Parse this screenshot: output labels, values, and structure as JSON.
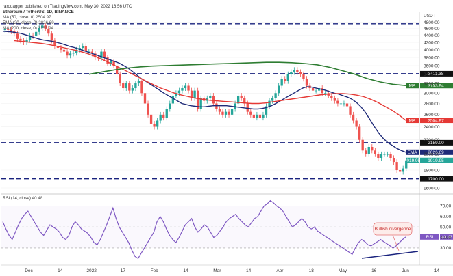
{
  "header": {
    "publisher": "rarodagger published on TradingView.com, May 30, 2022 16:56 UTC",
    "title": "Ethereum / TetherUS, 1D, BINANCE",
    "ma50": "MA (50, close, 0)",
    "ma50_val": "2504.97",
    "ema20": "EMA (20, close, 0)",
    "ema20_val": "2026.69",
    "ma200": "MA (200, close, 0)",
    "ma200_val": "3153.94"
  },
  "rsi_header": {
    "label": "RSI (14, close)",
    "value": "40.48"
  },
  "annotation": "Bullish divergence",
  "colors": {
    "up": "#26a69a",
    "down": "#ef5350",
    "ma50": "#e53935",
    "ema20": "#1e2a78",
    "ma200": "#2e7d32",
    "rsi": "#7e57c2",
    "level": "#1a237e"
  },
  "chart_data": [
    {
      "type": "candlestick",
      "unit": "USDT",
      "x_labels": [
        "Dec",
        "14",
        "2022",
        "17",
        "Feb",
        "14",
        "Mar",
        "14",
        "Apr",
        "18",
        "May",
        "16",
        "Jun",
        "14"
      ],
      "y_ticks": [
        1600,
        1800,
        2000,
        2200,
        2400,
        2600,
        2800,
        3000,
        3200,
        3400,
        3600,
        3800,
        4000,
        4200,
        4400,
        4600,
        4800
      ],
      "ylim": [
        1550,
        4900
      ],
      "scale": "log",
      "horizontal_levels": [
        {
          "label": "3411.38",
          "value": 3411.38
        },
        {
          "label": "2159.00",
          "value": 2159.0
        },
        {
          "label": "1700.00",
          "value": 1700.0
        }
      ],
      "price_labels": [
        {
          "label": "MA",
          "value": "3153.94"
        },
        {
          "label": "MA",
          "value": "2504.97"
        },
        {
          "label": "EMA",
          "value": "2026.69"
        },
        {
          "label": "1919.95",
          "value": "1919.95"
        }
      ],
      "close_series": [
        4600,
        4560,
        4520,
        4450,
        4300,
        4250,
        4200,
        4270,
        4400,
        4380,
        4500,
        4620,
        4700,
        4600,
        4450,
        4250,
        4100,
        4050,
        4000,
        3950,
        3850,
        3900,
        3920,
        4000,
        4050,
        4100,
        3950,
        3950,
        3900,
        3800,
        3780,
        3950,
        3800,
        3650,
        3700,
        3600,
        3400,
        3200,
        3100,
        3200,
        3050,
        3100,
        3200,
        3250,
        3000,
        2800,
        2600,
        2450,
        2400,
        2500,
        2600,
        2550,
        2700,
        2800,
        2950,
        3000,
        3050,
        3100,
        3150,
        3050,
        2900,
        3050,
        2700,
        2900,
        2850,
        2900,
        2950,
        2800,
        2700,
        2650,
        2600,
        2650,
        2600,
        2700,
        2800,
        2950,
        2900,
        2800,
        2650,
        2600,
        2550,
        2600,
        2550,
        2600,
        2750,
        2850,
        2900,
        3000,
        3150,
        3300,
        3250,
        3400,
        3450,
        3500,
        3450,
        3400,
        3300,
        3150,
        3100,
        3050,
        3050,
        3100,
        3000,
        3000,
        2950,
        2900,
        2850,
        2800,
        2800,
        2800,
        2750,
        2600,
        2500,
        2400,
        2200,
        2050,
        2000,
        2100,
        2050,
        2000,
        1950,
        2000,
        2000,
        2000,
        1950,
        1900,
        1800,
        1780,
        1820,
        1919.95
      ],
      "ema20": [
        4520,
        4510,
        4500,
        4480,
        4460,
        4420,
        4380,
        4340,
        4300,
        4270,
        4250,
        4230,
        4200,
        4170,
        4130,
        4090,
        4060,
        4020,
        3980,
        3940,
        3900,
        3860,
        3820,
        3780,
        3740,
        3700,
        3660,
        3600,
        3540,
        3460,
        3380,
        3300,
        3240,
        3180,
        3120,
        3060,
        3000,
        2950,
        2900,
        2850,
        2800,
        2780,
        2760,
        2750,
        2740,
        2740,
        2750,
        2760,
        2760,
        2760,
        2760,
        2750,
        2740,
        2730,
        2720,
        2710,
        2700,
        2700,
        2710,
        2730,
        2760,
        2800,
        2850,
        2900,
        2950,
        3000,
        3050,
        3100,
        3130,
        3120,
        3100,
        3080,
        3060,
        3030,
        3000,
        2980,
        2950,
        2920,
        2880,
        2820,
        2740,
        2640,
        2520,
        2400,
        2300,
        2220,
        2160,
        2120,
        2080,
        2050,
        2026.69
      ],
      "ma50": [
        4250,
        4230,
        4210,
        4190,
        4170,
        4140,
        4100,
        4060,
        4020,
        3980,
        3930,
        3870,
        3800,
        3720,
        3640,
        3560,
        3480,
        3400,
        3320,
        3240,
        3170,
        3100,
        3050,
        3000,
        2960,
        2930,
        2900,
        2880,
        2860,
        2850,
        2840,
        2830,
        2820,
        2810,
        2800,
        2800,
        2810,
        2830,
        2850,
        2870,
        2890,
        2910,
        2930,
        2950,
        2970,
        2980,
        2990,
        2990,
        2980,
        2960,
        2930,
        2880,
        2820,
        2750,
        2680,
        2600,
        2504.97
      ],
      "ma200": [
        3400,
        3450,
        3500,
        3540,
        3570,
        3590,
        3600,
        3610,
        3620,
        3630,
        3640,
        3650,
        3660,
        3670,
        3680,
        3680,
        3670,
        3650,
        3620,
        3560,
        3480,
        3400,
        3300,
        3230,
        3180,
        3153.94
      ]
    },
    {
      "type": "line",
      "name": "RSI (14, close)",
      "y_ticks": [
        30,
        40,
        50,
        60,
        70
      ],
      "ylim": [
        15,
        80
      ],
      "last_value": 40.48,
      "values": [
        55,
        48,
        42,
        38,
        45,
        52,
        58,
        62,
        65,
        60,
        55,
        50,
        45,
        42,
        47,
        52,
        50,
        48,
        45,
        40,
        38,
        42,
        50,
        55,
        52,
        48,
        46,
        44,
        40,
        35,
        33,
        38,
        45,
        52,
        60,
        68,
        58,
        50,
        45,
        40,
        35,
        28,
        22,
        20,
        25,
        30,
        35,
        40,
        45,
        55,
        60,
        55,
        48,
        42,
        38,
        35,
        40,
        46,
        52,
        55,
        58,
        50,
        45,
        48,
        52,
        50,
        45,
        40,
        42,
        46,
        50,
        55,
        58,
        60,
        62,
        58,
        55,
        52,
        50,
        54,
        58,
        60,
        65,
        70,
        72,
        75,
        73,
        70,
        68,
        65,
        60,
        55,
        50,
        52,
        55,
        58,
        55,
        50,
        48,
        50,
        46,
        44,
        42,
        40,
        38,
        36,
        34,
        32,
        30,
        28,
        26,
        24,
        30,
        35,
        38,
        36,
        33,
        32,
        34,
        36,
        38,
        36,
        34,
        32,
        30,
        32,
        35,
        38,
        40.48
      ],
      "levels": [
        30,
        50,
        70
      ]
    }
  ]
}
